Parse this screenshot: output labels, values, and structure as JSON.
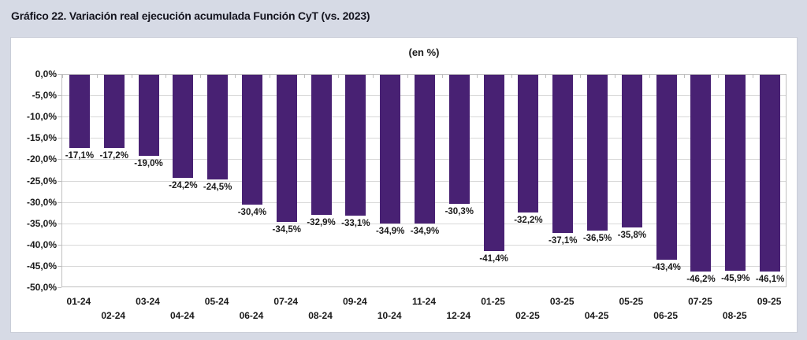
{
  "page": {
    "title": "Gráfico 22. Variación real ejecución acumulada Función CyT (vs. 2023)",
    "background_color": "#d6dae5",
    "panel_color": "#ffffff"
  },
  "chart_data": {
    "type": "bar",
    "title": "(en %)",
    "xlabel": "",
    "ylabel": "",
    "categories": [
      "01-24",
      "02-24",
      "03-24",
      "04-24",
      "05-24",
      "06-24",
      "07-24",
      "08-24",
      "09-24",
      "10-24",
      "11-24",
      "12-24",
      "01-25",
      "02-25",
      "03-25",
      "04-25",
      "05-25",
      "06-25",
      "07-25",
      "08-25",
      "09-25"
    ],
    "values": [
      -17.1,
      -17.2,
      -19.0,
      -24.2,
      -24.5,
      -30.4,
      -34.5,
      -32.9,
      -33.1,
      -34.9,
      -34.9,
      -30.3,
      -41.4,
      -32.2,
      -37.1,
      -36.5,
      -35.8,
      -43.4,
      -46.2,
      -45.9,
      -46.1
    ],
    "value_labels": [
      "-17,1%",
      "-17,2%",
      "-19,0%",
      "-24,2%",
      "-24,5%",
      "-30,4%",
      "-34,5%",
      "-32,9%",
      "-33,1%",
      "-34,9%",
      "-34,9%",
      "-30,3%",
      "-41,4%",
      "-32,2%",
      "-37,1%",
      "-36,5%",
      "-35,8%",
      "-43,4%",
      "-46,2%",
      "-45,9%",
      "-46,1%"
    ],
    "ylim": [
      -50,
      0
    ],
    "ytick_step": 5,
    "ytick_labels": [
      "0,0%",
      "-5,0%",
      "-10,0%",
      "-15,0%",
      "-20,0%",
      "-25,0%",
      "-30,0%",
      "-35,0%",
      "-40,0%",
      "-45,0%",
      "-50,0%"
    ],
    "grid": true,
    "legend": "none",
    "bar_color": "#482173",
    "gridline_color": "#d9d9d9",
    "axis_color": "#bfbfbf",
    "label_color": "#1a1a1a",
    "xtick_layout": "staggered-two-rows",
    "value_label_position": "outside-end-below-bar"
  }
}
